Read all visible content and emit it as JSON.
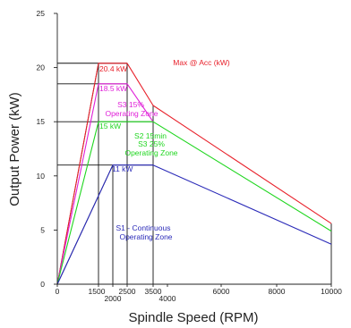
{
  "chart_data": {
    "type": "line",
    "title": "",
    "xlabel": "Spindle Speed (RPM)",
    "ylabel": "Output Power (kW)",
    "xlim": [
      0,
      10000
    ],
    "ylim": [
      0,
      25
    ],
    "x_scale": "piecewise-linear",
    "x_ticks": [
      0,
      1500,
      2000,
      2500,
      3500,
      4000,
      6000,
      8000,
      10000
    ],
    "x_tick_labels": [
      "0",
      "1500",
      "2000",
      "2500",
      "3500",
      "4000",
      "6000",
      "8000",
      "10000"
    ],
    "y_ticks": [
      0,
      5,
      10,
      15,
      20,
      25
    ],
    "y_tick_labels": [
      "0",
      "5",
      "10",
      "15",
      "20",
      "25"
    ],
    "grid": false,
    "series": [
      {
        "name": "Max @ Acc (kW)",
        "color": "#e8202a",
        "x": [
          0,
          1500,
          2500,
          3500,
          10000
        ],
        "y": [
          0,
          20.4,
          20.4,
          16.5,
          5.6
        ]
      },
      {
        "name": "S3 15% Operating Zone",
        "color": "#e020d8",
        "x": [
          0,
          1500,
          2500,
          3500
        ],
        "y": [
          0,
          18.5,
          18.5,
          15
        ]
      },
      {
        "name": "S2 15min S3 25% Operating Zone",
        "color": "#1ed61e",
        "x": [
          0,
          1500,
          3500,
          10000
        ],
        "y": [
          0,
          15,
          15,
          4.9
        ]
      },
      {
        "name": "S1 - Continuous Operating Zone",
        "color": "#2a2ab8",
        "x": [
          0,
          2000,
          3500,
          10000
        ],
        "y": [
          0,
          11,
          11,
          3.7
        ]
      }
    ],
    "reference_lines": {
      "horizontal": [
        20.4,
        18.5,
        15,
        11
      ],
      "vertical": [
        1500,
        2000,
        2500,
        3500,
        10000
      ],
      "color": "#111111"
    },
    "annotations": [
      {
        "text": "20.4 kW",
        "color": "#e8202a"
      },
      {
        "text": "Max @ Acc (kW)",
        "color": "#e8202a"
      },
      {
        "text": "18.5 kW",
        "color": "#e020d8"
      },
      {
        "text": "S3 15%",
        "color": "#e020d8"
      },
      {
        "text": "Operating Zone",
        "color": "#e020d8"
      },
      {
        "text": "15 kW",
        "color": "#1ed61e"
      },
      {
        "text": "S2 15min",
        "color": "#1ed61e"
      },
      {
        "text": "S3 25%",
        "color": "#1ed61e"
      },
      {
        "text": "Operating Zone",
        "color": "#1ed61e"
      },
      {
        "text": "11 kW",
        "color": "#2a2ab8"
      },
      {
        "text": "S1 - Continuous",
        "color": "#2a2ab8"
      },
      {
        "text": "Operating Zone",
        "color": "#2a2ab8"
      }
    ]
  }
}
